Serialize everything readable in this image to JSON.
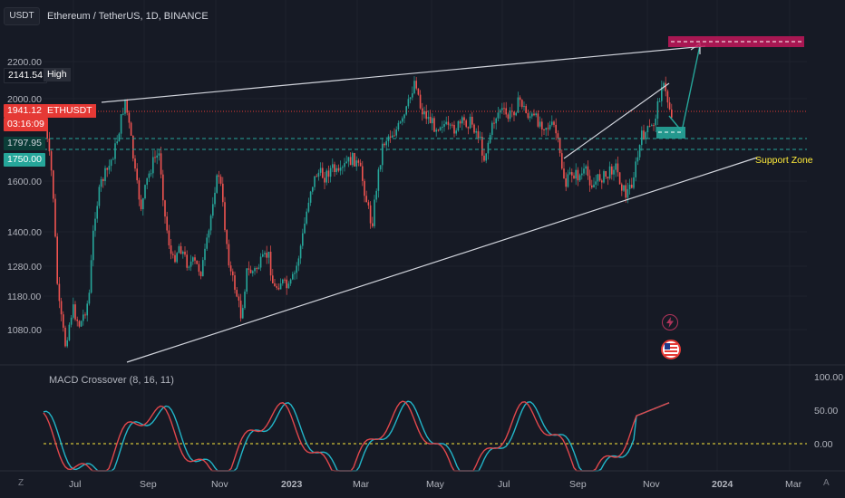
{
  "header": {
    "currency": "USDT",
    "symbol_title": "Ethereum / TetherUS, 1D, BINANCE"
  },
  "price_axis": {
    "ticks": [
      "2200.00",
      "2000.00",
      "1600.00",
      "1400.00",
      "1280.00",
      "1180.00",
      "1080.00"
    ]
  },
  "tags": {
    "high_value": "2141.54",
    "high_label": "High",
    "last_price": "1941.12",
    "countdown": "03:16:09",
    "symbol_label": "ETHUSDT",
    "level_1": "1797.95",
    "level_2": "1750.00"
  },
  "annotations": {
    "support_zone": "Support Zone"
  },
  "macd": {
    "title": "MACD Crossover (8, 16, 11)",
    "ticks": [
      "100.00",
      "50.00",
      "0.00"
    ]
  },
  "time_axis": {
    "labels": [
      "Jul",
      "Sep",
      "Nov",
      "2023",
      "Mar",
      "May",
      "Jul",
      "Sep",
      "Nov",
      "2024",
      "Mar"
    ]
  },
  "corner_buttons": {
    "left": "Z",
    "right": "A"
  },
  "colors": {
    "background": "#161a25",
    "up_candle": "#26a69a",
    "down_candle": "#ef5350",
    "macd_line": "#22b5c8",
    "signal_line": "#e0474c",
    "trendline": "#d1d4dc",
    "last_price_line": "#e53935",
    "support_dashed": "#26a69a",
    "target_box": "#c2185b",
    "zero_line": "#ffeb3b"
  }
}
